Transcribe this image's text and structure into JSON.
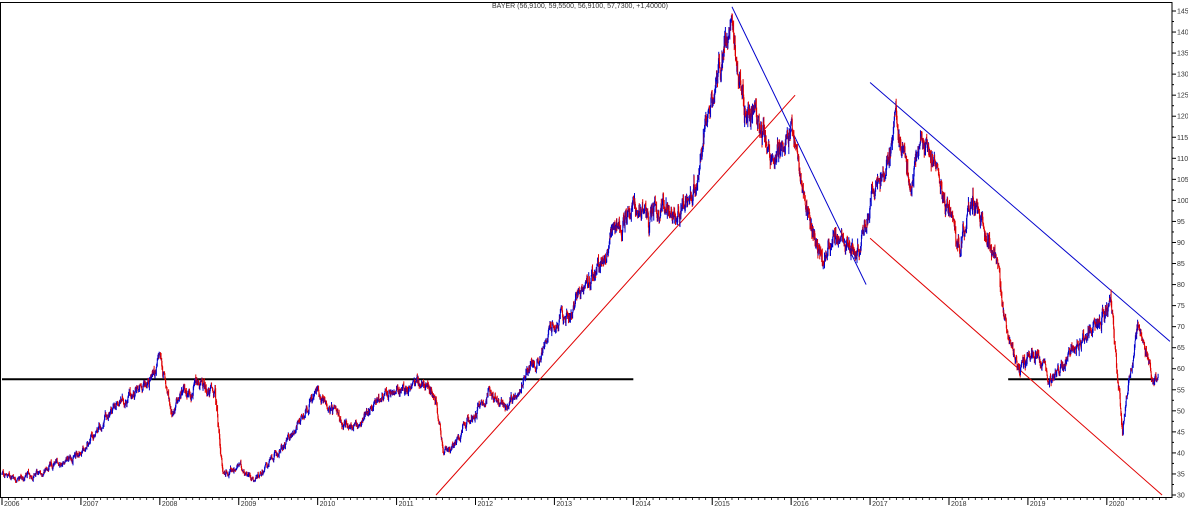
{
  "chart_data": {
    "type": "candlestick",
    "title": "BAYER (56,9100, 59,5500, 56,9100, 57,7300, +1,40000)",
    "xlabel": "",
    "ylabel": "",
    "ylim": [
      30,
      145
    ],
    "xlim": [
      2006.0,
      2020.75
    ],
    "y_ticks": [
      30,
      35,
      40,
      45,
      50,
      55,
      60,
      65,
      70,
      75,
      80,
      85,
      90,
      95,
      100,
      105,
      110,
      115,
      120,
      125,
      130,
      135,
      140,
      145
    ],
    "x_ticks": [
      {
        "label": "2006",
        "x": 2006.0
      },
      {
        "label": "2007",
        "x": 2007.0
      },
      {
        "label": "2008",
        "x": 2008.0
      },
      {
        "label": "2009",
        "x": 2009.0
      },
      {
        "label": "2010",
        "x": 2010.0
      },
      {
        "label": "2011",
        "x": 2011.0
      },
      {
        "label": "2012",
        "x": 2012.0
      },
      {
        "label": "2013",
        "x": 2013.0
      },
      {
        "label": "2014",
        "x": 2014.0
      },
      {
        "label": "2015",
        "x": 2015.0
      },
      {
        "label": "2016",
        "x": 2016.0
      },
      {
        "label": "2017",
        "x": 2017.0
      },
      {
        "label": "2018",
        "x": 2018.0
      },
      {
        "label": "2019",
        "x": 2019.0
      },
      {
        "label": "2020",
        "x": 2020.0
      }
    ],
    "price_path": [
      [
        2006.0,
        35
      ],
      [
        2006.25,
        34
      ],
      [
        2006.5,
        35
      ],
      [
        2006.75,
        38
      ],
      [
        2007.0,
        40
      ],
      [
        2007.25,
        46
      ],
      [
        2007.5,
        52
      ],
      [
        2007.75,
        55
      ],
      [
        2007.95,
        60
      ],
      [
        2008.0,
        63
      ],
      [
        2008.15,
        50
      ],
      [
        2008.3,
        54
      ],
      [
        2008.5,
        56
      ],
      [
        2008.7,
        54
      ],
      [
        2008.8,
        35
      ],
      [
        2009.0,
        37
      ],
      [
        2009.2,
        34
      ],
      [
        2009.4,
        38
      ],
      [
        2009.6,
        42
      ],
      [
        2009.8,
        49
      ],
      [
        2010.0,
        55
      ],
      [
        2010.25,
        48
      ],
      [
        2010.5,
        46
      ],
      [
        2010.75,
        53
      ],
      [
        2011.0,
        54
      ],
      [
        2011.25,
        57
      ],
      [
        2011.5,
        54
      ],
      [
        2011.6,
        40
      ],
      [
        2011.75,
        42
      ],
      [
        2012.0,
        50
      ],
      [
        2012.2,
        55
      ],
      [
        2012.4,
        50
      ],
      [
        2012.6,
        58
      ],
      [
        2012.8,
        63
      ],
      [
        2013.0,
        70
      ],
      [
        2013.2,
        73
      ],
      [
        2013.4,
        80
      ],
      [
        2013.6,
        85
      ],
      [
        2013.8,
        93
      ],
      [
        2014.0,
        100
      ],
      [
        2014.2,
        95
      ],
      [
        2014.4,
        100
      ],
      [
        2014.6,
        97
      ],
      [
        2014.8,
        105
      ],
      [
        2015.0,
        123
      ],
      [
        2015.2,
        142
      ],
      [
        2015.4,
        124
      ],
      [
        2015.6,
        118
      ],
      [
        2015.8,
        110
      ],
      [
        2016.0,
        118
      ],
      [
        2016.2,
        100
      ],
      [
        2016.4,
        85
      ],
      [
        2016.6,
        93
      ],
      [
        2016.85,
        88
      ],
      [
        2017.0,
        100
      ],
      [
        2017.15,
        106
      ],
      [
        2017.35,
        119
      ],
      [
        2017.5,
        104
      ],
      [
        2017.7,
        116
      ],
      [
        2017.85,
        106
      ],
      [
        2018.0,
        96
      ],
      [
        2018.15,
        89
      ],
      [
        2018.3,
        101
      ],
      [
        2018.45,
        94
      ],
      [
        2018.6,
        85
      ],
      [
        2018.75,
        66
      ],
      [
        2018.9,
        60
      ],
      [
        2019.1,
        64
      ],
      [
        2019.3,
        57
      ],
      [
        2019.5,
        63
      ],
      [
        2019.7,
        68
      ],
      [
        2019.9,
        72
      ],
      [
        2020.05,
        76
      ],
      [
        2020.12,
        62
      ],
      [
        2020.2,
        46
      ],
      [
        2020.3,
        60
      ],
      [
        2020.4,
        70
      ],
      [
        2020.5,
        64
      ],
      [
        2020.58,
        57
      ],
      [
        2020.65,
        58
      ]
    ],
    "trendlines": [
      {
        "color": "#000000",
        "x1": 2006.0,
        "y1": 57.5,
        "x2": 2014.0,
        "y2": 57.5
      },
      {
        "color": "#000000",
        "x1": 2018.75,
        "y1": 57.5,
        "x2": 2020.65,
        "y2": 57.5
      },
      {
        "color": "#e00000",
        "x1": 2011.5,
        "y1": 30.0,
        "x2": 2016.05,
        "y2": 125.0
      },
      {
        "color": "#e00000",
        "x1": 2017.0,
        "y1": 91.0,
        "x2": 2020.7,
        "y2": 30.0
      },
      {
        "color": "#0000cc",
        "x1": 2015.25,
        "y1": 146.0,
        "x2": 2016.95,
        "y2": 80.0
      },
      {
        "color": "#0000cc",
        "x1": 2017.0,
        "y1": 128.0,
        "x2": 2020.8,
        "y2": 66.5
      }
    ],
    "colors": {
      "up": "#0000cc",
      "down": "#e00000",
      "frame": "#000000",
      "background": "#ffffff"
    },
    "grid": false,
    "legend": "none"
  }
}
